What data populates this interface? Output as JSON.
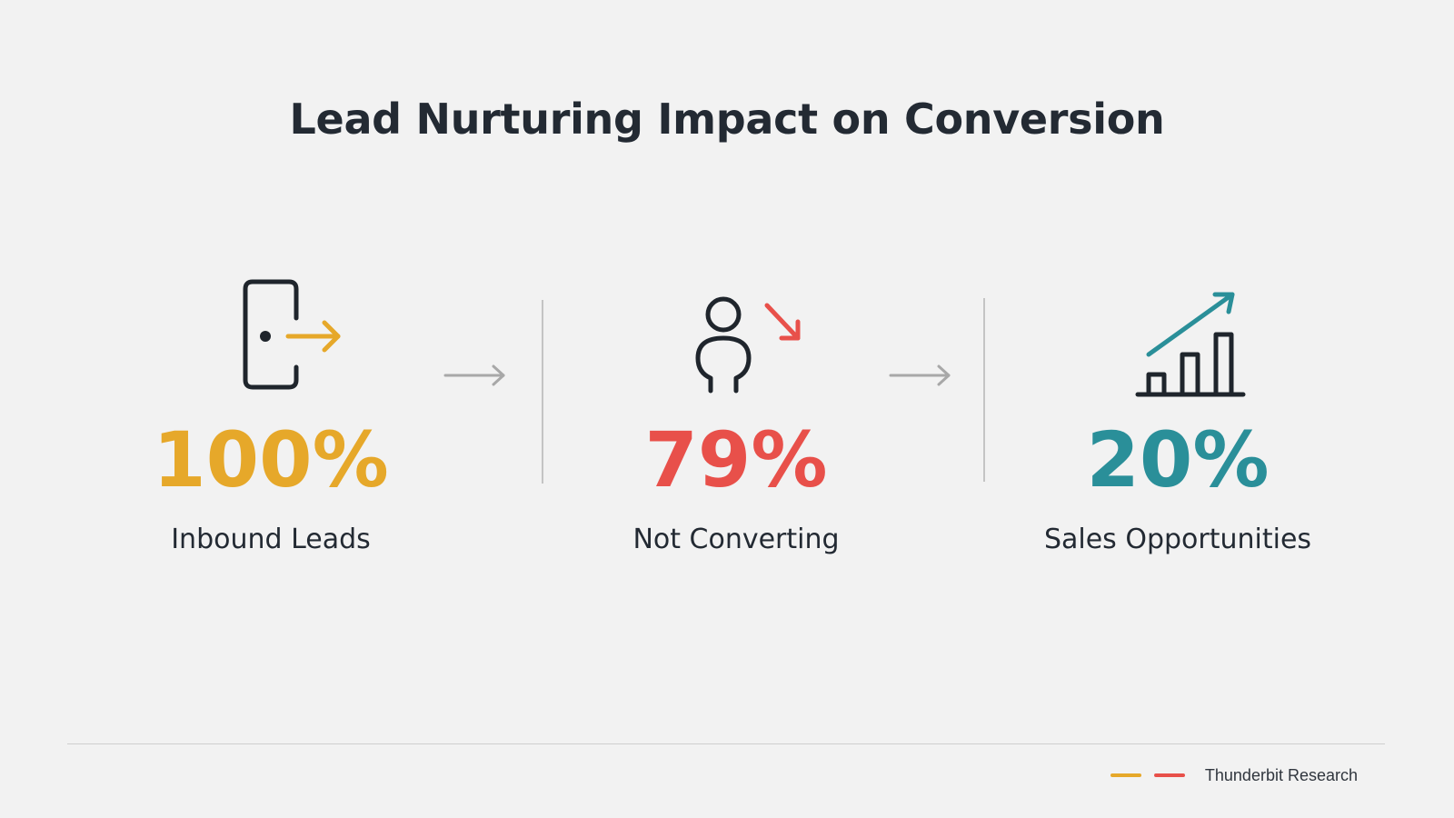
{
  "title": "Lead Nurturing Impact on Conversion",
  "stages": [
    {
      "value": "100%",
      "label": "Inbound Leads",
      "icon": "door-exit-icon",
      "color": "#e6a82a"
    },
    {
      "value": "79%",
      "label": "Not Converting",
      "icon": "person-decline-icon",
      "color": "#e8504a"
    },
    {
      "value": "20%",
      "label": "Sales Opportunities",
      "icon": "growth-chart-icon",
      "color": "#2a8f99"
    }
  ],
  "footer": {
    "source": "Thunderbit Research",
    "legend_colors": [
      "#e6a82a",
      "#e8504a"
    ]
  },
  "colors": {
    "icon_stroke": "#1f252c",
    "flow_arrow": "#a8a8a8",
    "divider": "#c4c4c4",
    "background": "#f2f2f2"
  }
}
